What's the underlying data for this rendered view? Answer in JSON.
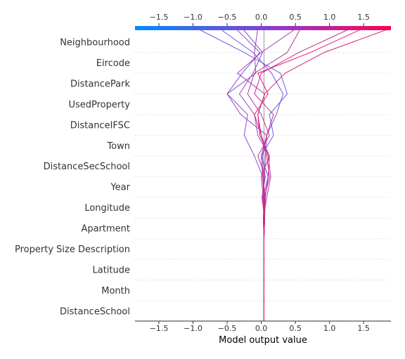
{
  "chart_data": {
    "type": "line",
    "subtype": "shap-decision-plot",
    "title": "",
    "xlabel": "Model output value",
    "ylabel": "",
    "xlim": [
      -1.85,
      1.9
    ],
    "xticks": [
      -1.5,
      -1.0,
      -0.5,
      0.0,
      0.5,
      1.0,
      1.5
    ],
    "xtick_labels": [
      "−1.5",
      "−1.0",
      "−0.5",
      "0.0",
      "0.5",
      "1.0",
      "1.5"
    ],
    "base_value": 0.04,
    "colormap": [
      "#008bfb",
      "#ff0052"
    ],
    "grid": "dotted horizontal",
    "features": [
      "Neighbourhood",
      "Eircode",
      "DistancePark",
      "UsedProperty",
      "DistanceIFSC",
      "Town",
      "DistanceSecSchool",
      "Year",
      "Longitude",
      "Apartment",
      "Property Size Description",
      "Latitude",
      "Month",
      "DistanceSchool"
    ],
    "series": [
      {
        "color": "#6a5ce0",
        "values": [
          -0.95,
          -0.25,
          0.28,
          0.38,
          0.12,
          0.18,
          0.0,
          0.1,
          0.06,
          0.05,
          0.04,
          0.04,
          0.04,
          0.04
        ]
      },
      {
        "color": "#7a54db",
        "values": [
          -0.62,
          -0.12,
          0.15,
          0.32,
          0.22,
          0.08,
          0.02,
          0.03,
          0.05,
          0.04,
          0.04,
          0.04,
          0.04,
          0.04
        ]
      },
      {
        "color": "#8a4cd4",
        "values": [
          -0.38,
          -0.02,
          -0.28,
          -0.5,
          -0.2,
          -0.25,
          -0.1,
          0.02,
          0.04,
          0.03,
          0.04,
          0.04,
          0.04,
          0.04
        ]
      },
      {
        "color": "#9447cc",
        "values": [
          -0.28,
          0.02,
          -0.12,
          -0.32,
          -0.1,
          -0.05,
          0.12,
          0.1,
          0.03,
          0.05,
          0.04,
          0.04,
          0.04,
          0.04
        ]
      },
      {
        "color": "#9a42c6",
        "values": [
          -0.05,
          -0.1,
          -0.08,
          -0.5,
          -0.3,
          0.08,
          0.06,
          0.05,
          0.02,
          0.04,
          0.04,
          0.04,
          0.04,
          0.04
        ]
      },
      {
        "color": "#a83bb8",
        "values": [
          0.52,
          0.0,
          -0.35,
          0.05,
          -0.05,
          0.0,
          0.1,
          0.14,
          0.08,
          0.03,
          0.04,
          0.04,
          0.04,
          0.04
        ]
      },
      {
        "color": "#b534a8",
        "values": [
          0.58,
          0.38,
          -0.1,
          -0.2,
          0.0,
          0.12,
          -0.05,
          0.06,
          0.01,
          0.05,
          0.04,
          0.04,
          0.04,
          0.04
        ]
      },
      {
        "color": "#c72b92",
        "values": [
          1.32,
          0.55,
          0.0,
          -0.1,
          0.18,
          0.08,
          0.0,
          0.02,
          0.06,
          0.03,
          0.04,
          0.04,
          0.04,
          0.04
        ]
      },
      {
        "color": "#d5247e",
        "values": [
          1.9,
          0.92,
          0.35,
          0.05,
          -0.05,
          -0.02,
          0.12,
          0.0,
          0.03,
          0.05,
          0.04,
          0.04,
          0.04,
          0.04
        ]
      },
      {
        "color": "#e21a68",
        "values": [
          1.5,
          0.72,
          -0.05,
          0.1,
          -0.1,
          0.0,
          0.08,
          0.12,
          0.05,
          0.04,
          0.04,
          0.04,
          0.04,
          0.04
        ]
      }
    ]
  }
}
